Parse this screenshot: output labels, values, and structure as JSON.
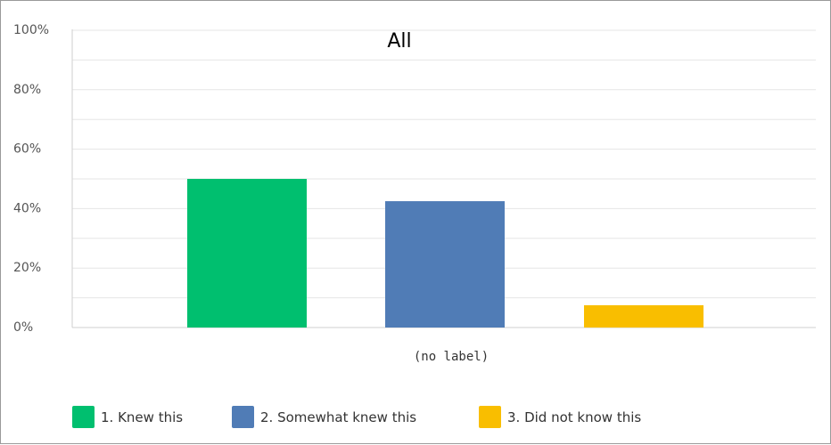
{
  "chart_data": {
    "type": "bar",
    "title": "All",
    "categories": [
      "(no label)"
    ],
    "series": [
      {
        "name": "1. Knew this",
        "values": [
          50
        ],
        "color": "#00BF6F"
      },
      {
        "name": "2. Somewhat knew this",
        "values": [
          42.5
        ],
        "color": "#507CB6"
      },
      {
        "name": "3. Did not know this",
        "values": [
          7.5
        ],
        "color": "#F9BE00"
      }
    ],
    "y_ticks": [
      "0%",
      "20%",
      "40%",
      "60%",
      "80%",
      "100%"
    ],
    "ylim": [
      0,
      100
    ],
    "grid": true,
    "legend_position": "bottom-left"
  }
}
